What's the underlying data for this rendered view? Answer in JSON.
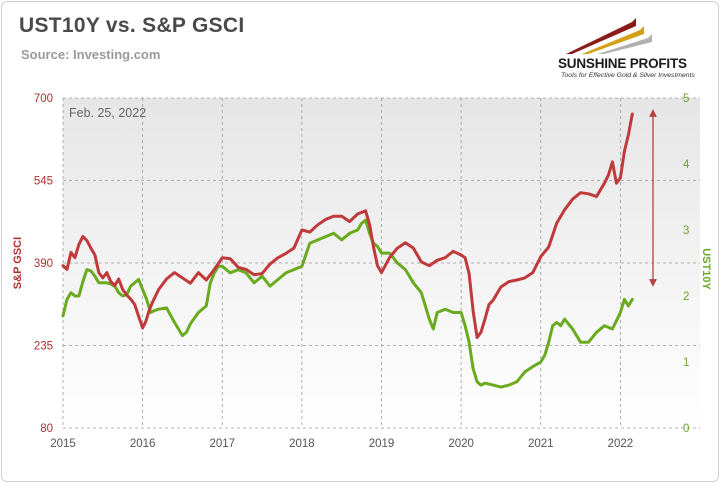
{
  "header": {
    "title": "UST10Y vs. S&P GSCI",
    "source": "Source: Investing.com"
  },
  "logo": {
    "name": "SUNSHINE PROFITS",
    "tagline": "Tools for Effective Gold & Silver Investments"
  },
  "colors": {
    "gsci": "#c0393b",
    "ust10y": "#6aaa1e",
    "arrow": "#b94040"
  },
  "chart_data": {
    "type": "line",
    "title": "UST10Y vs. S&P GSCI",
    "annotation": "Feb. 25, 2022",
    "x_ticks": [
      "2015",
      "2016",
      "2017",
      "2018",
      "2019",
      "2020",
      "2021",
      "2022"
    ],
    "xlim": [
      2015.0,
      2023.0
    ],
    "left_axis": {
      "label": "S&P GSCI",
      "ylim": [
        80,
        700
      ],
      "ticks": [
        "80",
        "235",
        "390",
        "545",
        "700"
      ]
    },
    "right_axis": {
      "label": "UST10Y",
      "ylim": [
        0,
        5
      ],
      "ticks": [
        "0",
        "1",
        "2",
        "3",
        "4",
        "5"
      ]
    },
    "grid": true,
    "series": [
      {
        "name": "S&P GSCI",
        "axis": "left",
        "x": [
          2015.0,
          2015.05,
          2015.1,
          2015.15,
          2015.2,
          2015.25,
          2015.3,
          2015.35,
          2015.4,
          2015.45,
          2015.5,
          2015.55,
          2015.6,
          2015.65,
          2015.7,
          2015.75,
          2015.8,
          2015.85,
          2015.9,
          2015.95,
          2016.0,
          2016.04,
          2016.08,
          2016.12,
          2016.2,
          2016.3,
          2016.4,
          2016.5,
          2016.6,
          2016.7,
          2016.8,
          2016.9,
          2017.0,
          2017.1,
          2017.2,
          2017.3,
          2017.4,
          2017.5,
          2017.6,
          2017.7,
          2017.8,
          2017.9,
          2018.0,
          2018.1,
          2018.2,
          2018.3,
          2018.4,
          2018.5,
          2018.6,
          2018.7,
          2018.8,
          2018.85,
          2018.9,
          2018.95,
          2019.0,
          2019.1,
          2019.2,
          2019.3,
          2019.4,
          2019.5,
          2019.6,
          2019.7,
          2019.8,
          2019.9,
          2020.0,
          2020.05,
          2020.1,
          2020.15,
          2020.2,
          2020.25,
          2020.3,
          2020.35,
          2020.4,
          2020.5,
          2020.6,
          2020.7,
          2020.8,
          2020.9,
          2021.0,
          2021.1,
          2021.2,
          2021.3,
          2021.4,
          2021.5,
          2021.6,
          2021.7,
          2021.8,
          2021.85,
          2021.9,
          2021.95,
          2022.0,
          2022.05,
          2022.1,
          2022.15
        ],
        "values": [
          385,
          378,
          410,
          400,
          425,
          440,
          432,
          418,
          405,
          372,
          362,
          372,
          355,
          348,
          360,
          340,
          330,
          322,
          312,
          290,
          268,
          280,
          300,
          315,
          340,
          360,
          372,
          362,
          352,
          372,
          358,
          378,
          400,
          398,
          382,
          378,
          368,
          370,
          388,
          400,
          408,
          418,
          452,
          448,
          462,
          472,
          478,
          478,
          468,
          482,
          488,
          462,
          420,
          385,
          372,
          400,
          418,
          428,
          418,
          392,
          385,
          395,
          400,
          412,
          405,
          400,
          370,
          300,
          250,
          260,
          285,
          312,
          320,
          345,
          355,
          358,
          362,
          372,
          402,
          420,
          465,
          490,
          510,
          522,
          520,
          515,
          540,
          555,
          580,
          540,
          550,
          600,
          630,
          670
        ]
      },
      {
        "name": "UST10Y",
        "axis": "right",
        "x": [
          2015.0,
          2015.05,
          2015.1,
          2015.15,
          2015.2,
          2015.25,
          2015.3,
          2015.35,
          2015.4,
          2015.45,
          2015.5,
          2015.55,
          2015.6,
          2015.65,
          2015.7,
          2015.75,
          2015.8,
          2015.85,
          2015.9,
          2015.95,
          2016.0,
          2016.05,
          2016.1,
          2016.15,
          2016.2,
          2016.3,
          2016.4,
          2016.5,
          2016.55,
          2016.6,
          2016.7,
          2016.8,
          2016.85,
          2016.9,
          2016.95,
          2017.0,
          2017.1,
          2017.2,
          2017.3,
          2017.4,
          2017.5,
          2017.6,
          2017.7,
          2017.8,
          2017.9,
          2018.0,
          2018.1,
          2018.2,
          2018.3,
          2018.4,
          2018.5,
          2018.6,
          2018.7,
          2018.75,
          2018.8,
          2018.85,
          2018.9,
          2018.95,
          2019.0,
          2019.1,
          2019.2,
          2019.3,
          2019.4,
          2019.5,
          2019.6,
          2019.65,
          2019.7,
          2019.8,
          2019.9,
          2020.0,
          2020.05,
          2020.1,
          2020.15,
          2020.2,
          2020.25,
          2020.3,
          2020.4,
          2020.5,
          2020.6,
          2020.7,
          2020.8,
          2020.9,
          2021.0,
          2021.05,
          2021.1,
          2021.15,
          2021.2,
          2021.25,
          2021.3,
          2021.4,
          2021.5,
          2021.6,
          2021.7,
          2021.8,
          2021.9,
          2022.0,
          2022.05,
          2022.1,
          2022.15
        ],
        "values": [
          1.7,
          1.95,
          2.05,
          2.0,
          2.0,
          2.22,
          2.4,
          2.38,
          2.3,
          2.2,
          2.2,
          2.2,
          2.18,
          2.15,
          2.05,
          2.0,
          2.02,
          2.15,
          2.2,
          2.25,
          2.1,
          1.95,
          1.75,
          1.78,
          1.8,
          1.82,
          1.6,
          1.4,
          1.45,
          1.58,
          1.75,
          1.85,
          2.2,
          2.35,
          2.45,
          2.45,
          2.35,
          2.4,
          2.35,
          2.2,
          2.3,
          2.15,
          2.25,
          2.35,
          2.4,
          2.45,
          2.8,
          2.85,
          2.9,
          2.95,
          2.85,
          2.95,
          3.0,
          3.1,
          3.15,
          2.95,
          2.8,
          2.75,
          2.65,
          2.65,
          2.5,
          2.4,
          2.2,
          2.05,
          1.65,
          1.5,
          1.75,
          1.8,
          1.75,
          1.75,
          1.55,
          1.3,
          0.9,
          0.7,
          0.65,
          0.68,
          0.65,
          0.62,
          0.65,
          0.7,
          0.85,
          0.93,
          1.0,
          1.1,
          1.3,
          1.55,
          1.6,
          1.55,
          1.65,
          1.5,
          1.3,
          1.3,
          1.45,
          1.55,
          1.5,
          1.75,
          1.95,
          1.85,
          1.95
        ]
      }
    ]
  }
}
